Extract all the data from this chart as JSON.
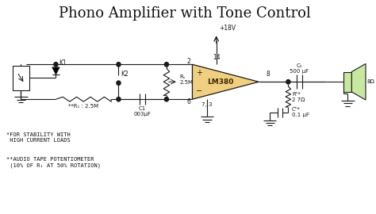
{
  "title": "Phono Amplifier with Tone Control",
  "bg_color": "#ffffff",
  "line_color": "#1a1a1a",
  "op_amp_fill": "#f0d080",
  "op_amp_stroke": "#1a1a1a",
  "speaker_fill": "#c8e8a0",
  "title_fontsize": 13,
  "note_fontsize": 5.0,
  "footnote1": "*FOR STABILITY WITH\n HIGH CURRENT LOADS",
  "footnote2": "**AUDIO TAPE POTENTIOMETER\n (10% OF R₁ AT 50% ROTATION)",
  "voltage_label": "+18V",
  "ic_label": "LM380",
  "components": {
    "R1_label": "**R₁ : 2.5M",
    "K1_label": "K1",
    "K2_label": "K2",
    "Rv_label": "Rᵥ\n2.5M",
    "C1_label": "C1\n003μF",
    "Co_label": "C₀\n500 μF",
    "Rc_label": "Rᶜ*\n2 7Ω",
    "Cc_label": "Cᶜ*\n0.1 μF",
    "pin2": "2",
    "pin6": "6",
    "pin14": "14",
    "pin73": "7, 3",
    "pin8": "8",
    "ohm8": "8Ω"
  }
}
